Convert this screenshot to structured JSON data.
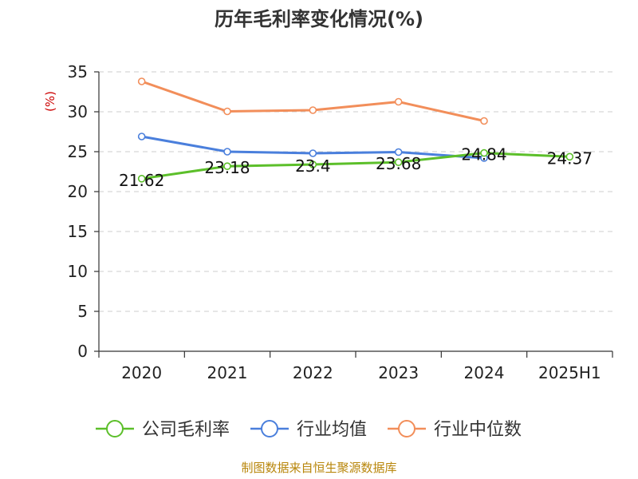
{
  "chart_data": {
    "type": "line",
    "title": "历年毛利率变化情况(%)",
    "ylabel": "(%)",
    "xlabel": "",
    "categories": [
      "2020",
      "2021",
      "2022",
      "2023",
      "2024",
      "2025H1"
    ],
    "ylim": [
      0,
      35
    ],
    "yticks": [
      "0",
      "5",
      "10",
      "15",
      "20",
      "25",
      "30",
      "35"
    ],
    "grid": true,
    "legend_position": "bottom",
    "series": [
      {
        "name": "公司毛利率",
        "color": "#5cbf2a",
        "values": [
          21.62,
          23.18,
          23.4,
          23.68,
          24.84,
          24.37
        ],
        "labels": [
          "21.62",
          "23.18",
          "23.4",
          "23.68",
          "24.84",
          "24.37"
        ]
      },
      {
        "name": "行业均值",
        "color": "#4a7fdc",
        "values": [
          26.9,
          25.0,
          24.8,
          24.95,
          24.2,
          null
        ]
      },
      {
        "name": "行业中位数",
        "color": "#f28e5a",
        "values": [
          33.8,
          30.05,
          30.2,
          31.25,
          28.85,
          null
        ]
      }
    ]
  },
  "source_text": "制图数据来自恒生聚源数据库"
}
